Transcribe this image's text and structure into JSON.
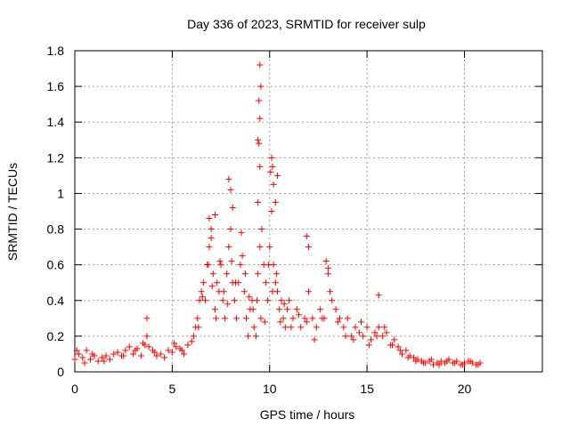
{
  "chart_data": {
    "type": "scatter",
    "title": "Day 336 of 2023, SRMTID for receiver sulp",
    "xlabel": "GPS time / hours",
    "ylabel": "SRMTID / TECUs",
    "xlim": [
      0,
      24
    ],
    "ylim": [
      0,
      1.8
    ],
    "xticks": [
      0,
      5,
      10,
      15,
      20
    ],
    "xtick_labels": [
      "0",
      "5",
      "10",
      "15",
      "20"
    ],
    "yticks": [
      0,
      0.2,
      0.4,
      0.6,
      0.8,
      1,
      1.2,
      1.4,
      1.6,
      1.8
    ],
    "ytick_labels": [
      "0",
      "0.2",
      "0.4",
      "0.6",
      "0.8",
      "1",
      "1.2",
      "1.4",
      "1.6",
      "1.8"
    ],
    "grid": true,
    "marker": "+",
    "series": [
      {
        "name": "SRMTID",
        "color": "#ff0000",
        "x": [
          0.0,
          0.2,
          0.4,
          0.6,
          0.8,
          1.0,
          1.2,
          1.4,
          1.6,
          1.8,
          2.0,
          2.2,
          2.4,
          2.6,
          2.8,
          3.0,
          3.2,
          3.4,
          3.6,
          3.7,
          3.8,
          4.0,
          4.2,
          4.4,
          4.6,
          4.8,
          5.0,
          5.2,
          5.4,
          5.6,
          5.8,
          6.0,
          6.1,
          6.2,
          6.3,
          6.4,
          6.5,
          6.6,
          6.7,
          6.8,
          6.9,
          7.0,
          7.1,
          7.2,
          7.3,
          7.4,
          7.5,
          7.6,
          7.7,
          7.8,
          7.9,
          8.0,
          8.1,
          8.2,
          8.3,
          8.4,
          8.5,
          8.6,
          8.7,
          8.8,
          8.9,
          9.0,
          9.1,
          9.2,
          9.3,
          9.4,
          9.5,
          9.6,
          9.7,
          9.8,
          9.9,
          10.0,
          10.1,
          10.2,
          10.3,
          10.4,
          10.5,
          10.6,
          10.7,
          10.8,
          10.9,
          11.0,
          11.2,
          11.4,
          11.6,
          11.8,
          12.0,
          12.2,
          12.4,
          12.6,
          12.8,
          13.0,
          13.2,
          13.4,
          13.6,
          13.8,
          14.0,
          14.2,
          14.4,
          14.6,
          14.8,
          15.0,
          15.2,
          15.4,
          15.6,
          15.8,
          16.0,
          16.2,
          16.4,
          16.6,
          16.8,
          17.0,
          17.2,
          17.4,
          17.6,
          17.8,
          18.0,
          18.2,
          18.4,
          18.6,
          18.8,
          19.0,
          19.2,
          19.4,
          19.6,
          19.8,
          20.0,
          20.2,
          20.4,
          20.6,
          20.8,
          0.1,
          0.5,
          0.9,
          1.5,
          2.5,
          3.1,
          3.5,
          4.1,
          5.1,
          5.5,
          6.35,
          6.55,
          6.85,
          7.05,
          7.25,
          7.45,
          7.65,
          7.85,
          8.05,
          8.25,
          8.55,
          8.75,
          8.95,
          9.15,
          9.35,
          9.55,
          9.75,
          9.95,
          10.15,
          10.35,
          10.55,
          10.75,
          11.1,
          11.5,
          11.9,
          12.3,
          12.7,
          13.1,
          13.5,
          13.9,
          14.3,
          14.7,
          15.1,
          15.5,
          15.9,
          16.3,
          16.7,
          17.1,
          17.5,
          17.9,
          18.3,
          18.7,
          19.1,
          19.5,
          19.9,
          20.3,
          20.7,
          6.9,
          7.0,
          7.2,
          7.9,
          8.0,
          8.1,
          9.4,
          9.45,
          9.5,
          9.55,
          9.5,
          9.45,
          9.4,
          9.5,
          10.1,
          10.15,
          10.2,
          10.3,
          10.4,
          10.05,
          11.9,
          12.0,
          12.9,
          13.0,
          15.6,
          3.7
        ],
        "y": [
          0.07,
          0.1,
          0.08,
          0.12,
          0.07,
          0.09,
          0.06,
          0.08,
          0.09,
          0.07,
          0.1,
          0.11,
          0.09,
          0.12,
          0.14,
          0.1,
          0.13,
          0.09,
          0.15,
          0.2,
          0.14,
          0.12,
          0.09,
          0.1,
          0.08,
          0.12,
          0.11,
          0.14,
          0.13,
          0.1,
          0.15,
          0.17,
          0.2,
          0.25,
          0.3,
          0.4,
          0.45,
          0.5,
          0.4,
          0.6,
          0.7,
          0.8,
          0.55,
          0.35,
          0.5,
          0.45,
          0.6,
          0.4,
          0.3,
          0.55,
          0.7,
          0.8,
          0.5,
          0.4,
          0.3,
          0.5,
          0.6,
          0.65,
          0.45,
          0.3,
          0.2,
          0.35,
          0.4,
          0.25,
          0.2,
          0.55,
          0.7,
          0.8,
          0.6,
          0.5,
          0.4,
          0.7,
          0.9,
          0.6,
          0.5,
          0.45,
          0.35,
          0.4,
          0.3,
          0.25,
          0.35,
          0.4,
          0.3,
          0.35,
          0.25,
          0.3,
          0.45,
          0.3,
          0.25,
          0.35,
          0.3,
          0.55,
          0.4,
          0.35,
          0.3,
          0.25,
          0.3,
          0.2,
          0.25,
          0.22,
          0.2,
          0.25,
          0.18,
          0.22,
          0.25,
          0.2,
          0.22,
          0.15,
          0.18,
          0.14,
          0.1,
          0.12,
          0.09,
          0.08,
          0.07,
          0.06,
          0.05,
          0.06,
          0.04,
          0.05,
          0.06,
          0.05,
          0.07,
          0.05,
          0.06,
          0.04,
          0.05,
          0.06,
          0.05,
          0.04,
          0.05,
          0.12,
          0.05,
          0.1,
          0.06,
          0.09,
          0.12,
          0.16,
          0.11,
          0.16,
          0.12,
          0.25,
          0.42,
          0.6,
          0.48,
          0.3,
          0.62,
          0.45,
          0.38,
          0.62,
          0.5,
          0.78,
          0.55,
          0.42,
          0.35,
          0.4,
          0.3,
          0.28,
          0.6,
          0.45,
          0.55,
          0.28,
          0.38,
          0.25,
          0.32,
          0.28,
          0.18,
          0.3,
          0.45,
          0.28,
          0.2,
          0.18,
          0.28,
          0.15,
          0.2,
          0.25,
          0.15,
          0.12,
          0.08,
          0.06,
          0.05,
          0.07,
          0.04,
          0.06,
          0.05,
          0.04,
          0.06,
          0.04,
          0.86,
          0.75,
          0.88,
          1.08,
          1.02,
          0.92,
          1.3,
          1.52,
          1.72,
          1.6,
          1.42,
          1.28,
          0.95,
          1.15,
          1.2,
          1.15,
          1.05,
          0.95,
          1.1,
          1.12,
          0.76,
          0.7,
          0.62,
          0.58,
          0.43,
          0.3
        ]
      }
    ]
  }
}
